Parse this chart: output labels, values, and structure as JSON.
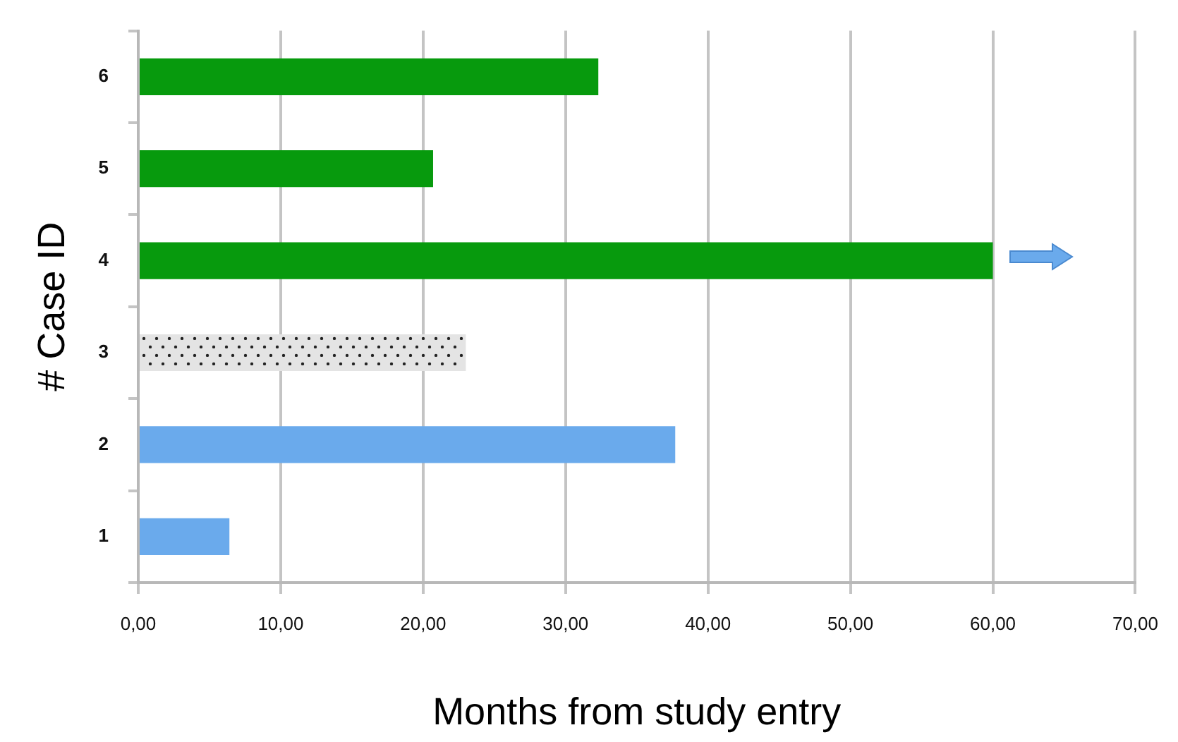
{
  "chart_data": {
    "type": "bar",
    "orientation": "horizontal",
    "xlabel": "Months from study entry",
    "ylabel": "# Case ID",
    "categories": [
      "6",
      "5",
      "4",
      "3",
      "2",
      "1"
    ],
    "values": [
      32.3,
      20.7,
      60.0,
      23.0,
      37.7,
      6.4
    ],
    "colors": [
      "#079a0d",
      "#079a0d",
      "#079a0d",
      "#e4e4e4",
      "#6aaaec",
      "#6aaaec"
    ],
    "xlim": [
      0,
      70
    ],
    "xticks": [
      {
        "value": 0,
        "label": "0,00"
      },
      {
        "value": 10,
        "label": "10,00"
      },
      {
        "value": 20,
        "label": "20,00"
      },
      {
        "value": 30,
        "label": "30,00"
      },
      {
        "value": 40,
        "label": "40,00"
      },
      {
        "value": 50,
        "label": "50,00"
      },
      {
        "value": 60,
        "label": "60,00"
      },
      {
        "value": 70,
        "label": "70,00"
      }
    ],
    "grid": "x",
    "legend": false
  }
}
